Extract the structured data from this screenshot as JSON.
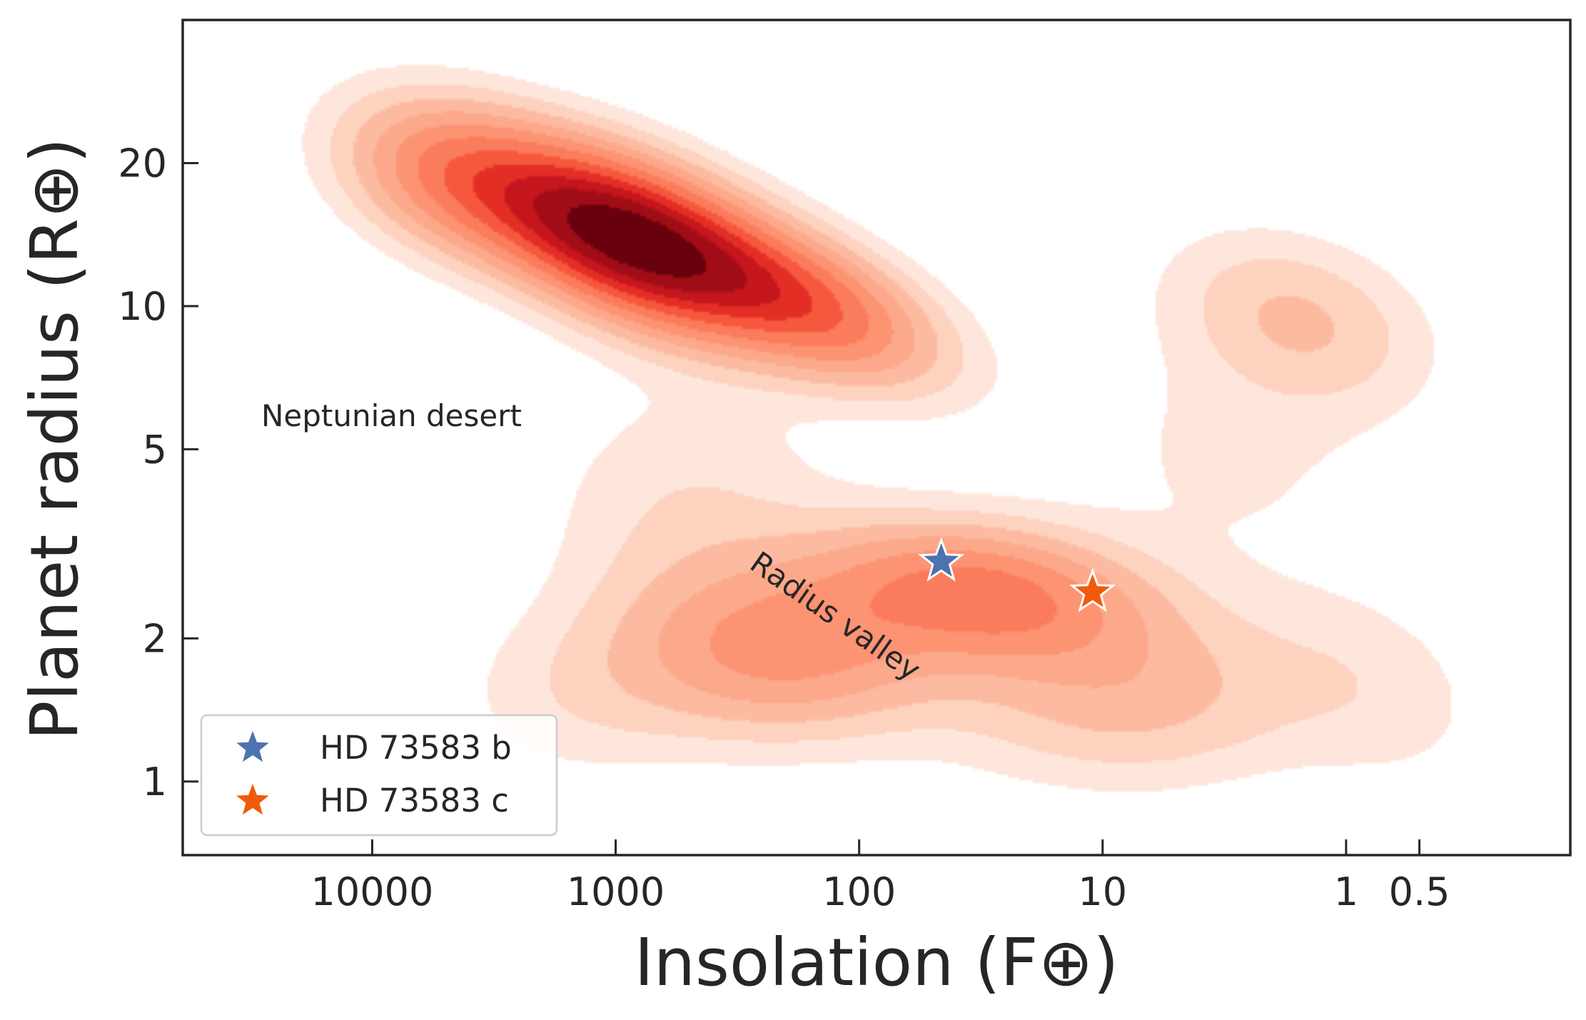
{
  "chart_data": {
    "type": "kde-contour",
    "title": "",
    "xlabel": "Insolation (F⊕)",
    "ylabel": "Planet radius (R⊕)",
    "x_scale": "log",
    "x_inverted": true,
    "y_scale": "log",
    "xlim": [
      60000,
      0.12
    ],
    "ylim": [
      0.7,
      40
    ],
    "x_ticks": [
      {
        "value": 10000,
        "label": "10000"
      },
      {
        "value": 1000,
        "label": "1000"
      },
      {
        "value": 100,
        "label": "100"
      },
      {
        "value": 10,
        "label": "10"
      },
      {
        "value": 1,
        "label": "1"
      },
      {
        "value": 0.5,
        "label": "0.5"
      }
    ],
    "y_ticks": [
      {
        "value": 1,
        "label": "1"
      },
      {
        "value": 2,
        "label": "2"
      },
      {
        "value": 5,
        "label": "5"
      },
      {
        "value": 10,
        "label": "10"
      },
      {
        "value": 20,
        "label": "20"
      }
    ],
    "colormap": [
      "#fee6dc",
      "#fdd2bf",
      "#fcbba1",
      "#fca98b",
      "#fc9373",
      "#fb7b5b",
      "#f6583e",
      "#e32f27",
      "#c4161c",
      "#a10e15",
      "#67000d"
    ],
    "density_peaks": [
      {
        "insolation": 900,
        "radius": 14,
        "level": "highest"
      },
      {
        "insolation": 20,
        "radius": 2.6,
        "level": "moderate"
      },
      {
        "insolation": 1.6,
        "radius": 9.5,
        "level": "low"
      }
    ],
    "series": [
      {
        "name": "HD 73583 b",
        "insolation": 46,
        "radius": 2.9,
        "color": "#4c72b0",
        "marker": "star"
      },
      {
        "name": "HD 73583 c",
        "insolation": 11,
        "radius": 2.5,
        "color": "#f15a0a",
        "marker": "star"
      }
    ],
    "annotations": [
      {
        "text": "Neptunian desert"
      },
      {
        "text": "Radius valley"
      }
    ],
    "legend": {
      "placement": "lower-left"
    }
  }
}
